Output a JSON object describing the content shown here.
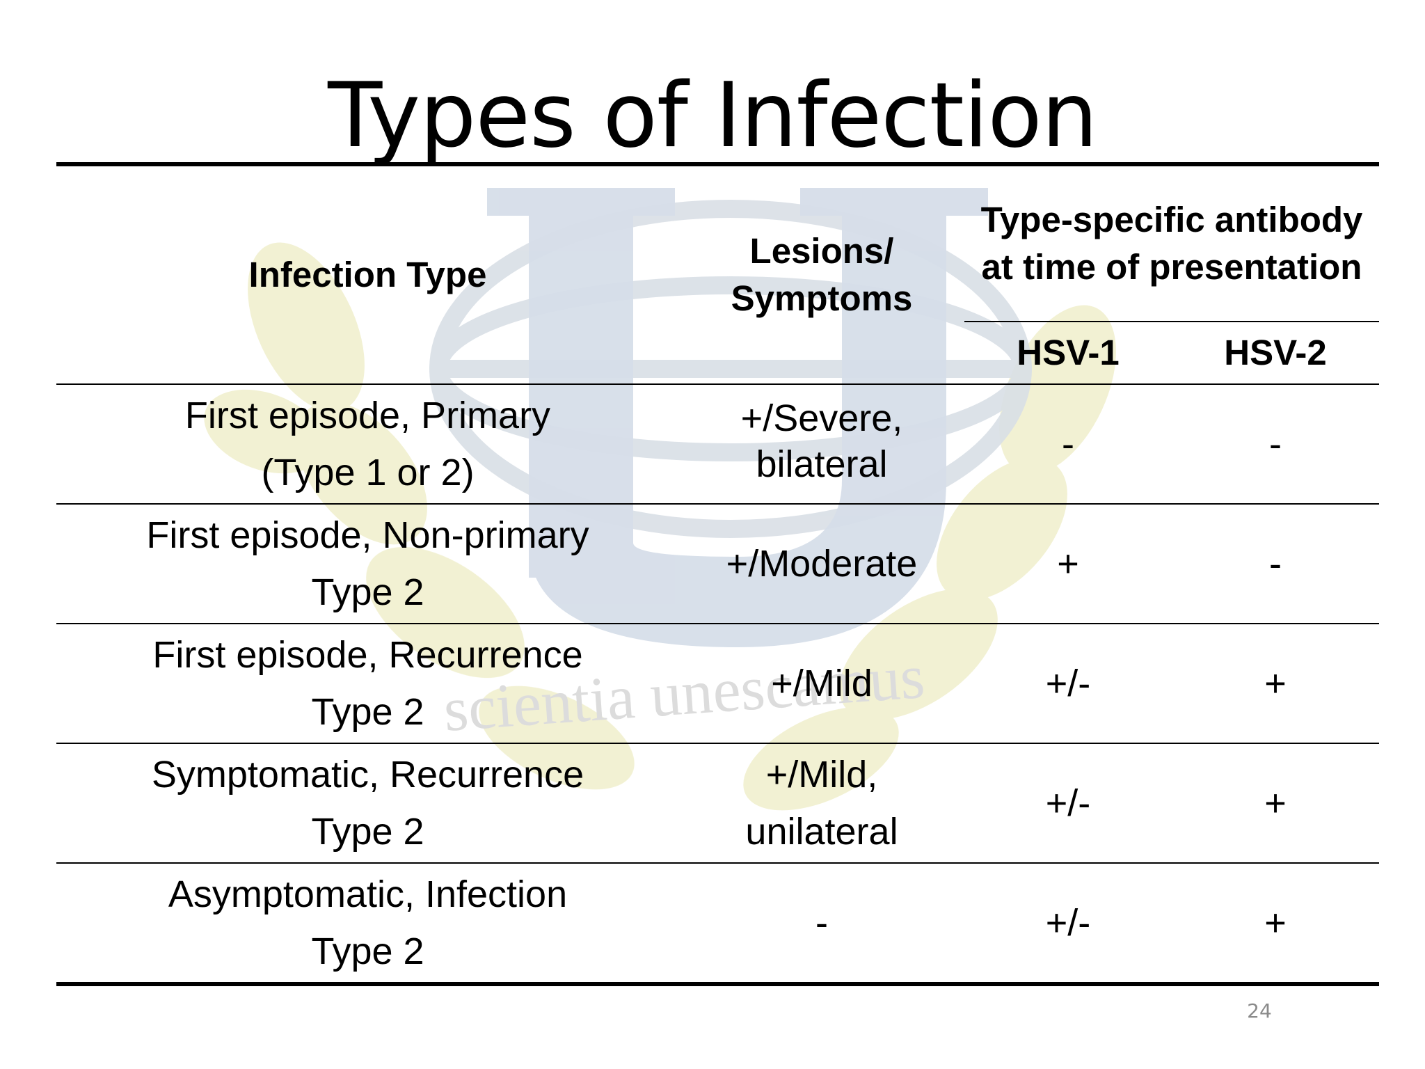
{
  "slide": {
    "title": "Types of Infection",
    "page_number": "24"
  },
  "watermark": {
    "motto": "scientia unescamus",
    "colors": {
      "letter": "#d6dee9",
      "laurel": "#f1f0cf",
      "globe": "#d9dfe6"
    }
  },
  "table": {
    "headers": {
      "infection_type": "Infection Type",
      "lesions": "Lesions/ Symptoms",
      "antibody": "Type-specific antibody at time of presentation",
      "hsv1": "HSV-1",
      "hsv2": "HSV-2"
    },
    "rows": [
      {
        "infection_line1": "First episode, Primary",
        "infection_line2": "(Type 1 or 2)",
        "lesions": "+/Severe, bilateral",
        "hsv1": "-",
        "hsv2": "-"
      },
      {
        "infection_line1": "First episode, Non-primary",
        "infection_line2": "Type 2",
        "lesions": "+/Moderate",
        "hsv1": "+",
        "hsv2": "-"
      },
      {
        "infection_line1": "First episode, Recurrence",
        "infection_line2": "Type 2",
        "lesions": "+/Mild",
        "hsv1": "+/-",
        "hsv2": "+"
      },
      {
        "infection_line1": "Symptomatic, Recurrence",
        "infection_line2": "Type 2",
        "lesions": "+/Mild, unilateral",
        "hsv1": "+/-",
        "hsv2": "+"
      },
      {
        "infection_line1": "Asymptomatic, Infection",
        "infection_line2": "Type 2",
        "lesions": "-",
        "hsv1": "+/-",
        "hsv2": "+"
      }
    ]
  }
}
